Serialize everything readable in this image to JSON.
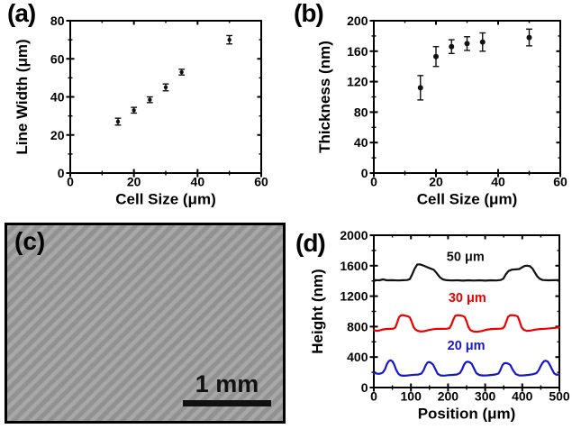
{
  "panels": {
    "a": {
      "label": "(a)"
    },
    "b": {
      "label": "(b)"
    },
    "c": {
      "label": "(c)",
      "scale_bar": "1 mm"
    },
    "d": {
      "label": "(d)"
    }
  },
  "colors": {
    "axis": "#000000",
    "sem_light": "#a6a6a6",
    "sem_dark": "#8c8c8c",
    "series_black": "#111111",
    "series_red": "#ee0000",
    "series_blue": "#1616cc"
  },
  "chart_data": [
    {
      "id": "a",
      "type": "scatter",
      "title": "",
      "xlabel": "Cell Size (μm)",
      "ylabel": "Line Width (μm)",
      "xlim": [
        0,
        60
      ],
      "ylim": [
        0,
        80
      ],
      "xticks": [
        0,
        20,
        40,
        60
      ],
      "yticks": [
        0,
        20,
        40,
        60,
        80
      ],
      "x_minor": 10,
      "y_minor": 10,
      "grid": false,
      "color": "#111111",
      "x": [
        15,
        20,
        25,
        30,
        35,
        50
      ],
      "y": [
        27,
        33,
        38.5,
        45,
        53,
        70
      ],
      "yerr": [
        1.8,
        1.5,
        1.5,
        1.8,
        1.5,
        2.2
      ]
    },
    {
      "id": "b",
      "type": "scatter",
      "title": "",
      "xlabel": "Cell Size (μm)",
      "ylabel": "Thickness (nm)",
      "xlim": [
        0,
        60
      ],
      "ylim": [
        0,
        200
      ],
      "xticks": [
        0,
        20,
        40,
        60
      ],
      "yticks": [
        0,
        40,
        80,
        120,
        160,
        200
      ],
      "x_minor": 10,
      "y_minor": 20,
      "grid": false,
      "color": "#111111",
      "x": [
        15,
        20,
        25,
        30,
        35,
        50
      ],
      "y": [
        112,
        153,
        166,
        170,
        172,
        178
      ],
      "yerr": [
        16,
        13,
        9,
        9,
        12,
        11
      ]
    },
    {
      "id": "d",
      "type": "line",
      "title": "",
      "xlabel": "Position (μm)",
      "ylabel": "Height (nm)",
      "xlim": [
        0,
        500
      ],
      "ylim": [
        0,
        2000
      ],
      "xticks": [
        0,
        100,
        200,
        300,
        400,
        500
      ],
      "yticks": [
        0,
        400,
        800,
        1200,
        1600,
        2000
      ],
      "x_minor": 50,
      "y_minor": 200,
      "grid": false,
      "legend_position": "inline-labels",
      "series": [
        {
          "name": "50 μm",
          "color": "#111111",
          "label_pos": [
            247,
            1720
          ],
          "x": [
            0,
            15,
            25,
            35,
            50,
            65,
            80,
            90,
            97,
            103,
            110,
            117,
            124,
            132,
            142,
            152,
            162,
            170,
            178,
            186,
            196,
            210,
            225,
            240,
            255,
            270,
            285,
            300,
            315,
            330,
            342,
            349,
            356,
            363,
            372,
            382,
            392,
            400,
            407,
            414,
            421,
            428,
            434,
            440,
            447,
            455,
            470,
            485,
            500
          ],
          "y": [
            1412,
            1408,
            1420,
            1408,
            1410,
            1406,
            1410,
            1412,
            1425,
            1480,
            1560,
            1615,
            1618,
            1605,
            1585,
            1565,
            1545,
            1500,
            1448,
            1420,
            1410,
            1406,
            1408,
            1404,
            1408,
            1405,
            1408,
            1404,
            1408,
            1406,
            1412,
            1430,
            1490,
            1530,
            1548,
            1552,
            1556,
            1580,
            1598,
            1600,
            1592,
            1560,
            1510,
            1462,
            1428,
            1412,
            1408,
            1410,
            1412
          ]
        },
        {
          "name": "30 μm",
          "color": "#ee0000",
          "label_pos": [
            252,
            1185
          ],
          "x": [
            0,
            8,
            16,
            24,
            32,
            42,
            52,
            58,
            63,
            68,
            73,
            79,
            86,
            92,
            97,
            102,
            107,
            112,
            118,
            126,
            136,
            148,
            160,
            172,
            184,
            196,
            204,
            209,
            214,
            219,
            226,
            234,
            240,
            245,
            250,
            255,
            261,
            269,
            279,
            291,
            303,
            317,
            331,
            341,
            347,
            352,
            357,
            362,
            368,
            376,
            383,
            388,
            393,
            398,
            404,
            412,
            422,
            434,
            448,
            462,
            476,
            488,
            500
          ],
          "y": [
            752,
            744,
            750,
            762,
            768,
            770,
            772,
            788,
            855,
            925,
            948,
            950,
            942,
            935,
            920,
            865,
            795,
            762,
            745,
            736,
            740,
            755,
            766,
            770,
            770,
            772,
            780,
            825,
            890,
            940,
            950,
            946,
            938,
            925,
            868,
            790,
            752,
            736,
            732,
            742,
            758,
            768,
            770,
            773,
            778,
            800,
            865,
            930,
            950,
            949,
            943,
            930,
            868,
            790,
            758,
            744,
            748,
            760,
            768,
            772,
            778,
            784,
            790
          ]
        },
        {
          "name": "20 μm",
          "color": "#1616cc",
          "label_pos": [
            249,
            555
          ],
          "x": [
            0,
            6,
            12,
            18,
            24,
            30,
            35,
            40,
            45,
            50,
            55,
            60,
            66,
            72,
            80,
            90,
            100,
            110,
            120,
            128,
            134,
            139,
            144,
            149,
            154,
            160,
            166,
            172,
            180,
            190,
            200,
            212,
            224,
            232,
            238,
            243,
            248,
            253,
            258,
            264,
            270,
            276,
            284,
            294,
            306,
            318,
            328,
            336,
            341,
            346,
            351,
            356,
            362,
            368,
            374,
            382,
            392,
            404,
            416,
            428,
            438,
            444,
            449,
            454,
            459,
            464,
            469,
            474,
            480,
            486,
            492,
            500
          ],
          "y": [
            190,
            186,
            180,
            184,
            196,
            240,
            305,
            345,
            358,
            345,
            300,
            235,
            182,
            160,
            155,
            158,
            163,
            168,
            170,
            182,
            225,
            285,
            325,
            335,
            325,
            300,
            240,
            180,
            158,
            156,
            162,
            166,
            172,
            190,
            240,
            300,
            332,
            340,
            332,
            310,
            250,
            190,
            165,
            158,
            160,
            166,
            172,
            185,
            230,
            290,
            318,
            322,
            315,
            295,
            235,
            178,
            158,
            160,
            166,
            174,
            188,
            225,
            275,
            320,
            348,
            352,
            340,
            300,
            240,
            186,
            168,
            172
          ]
        }
      ]
    }
  ]
}
